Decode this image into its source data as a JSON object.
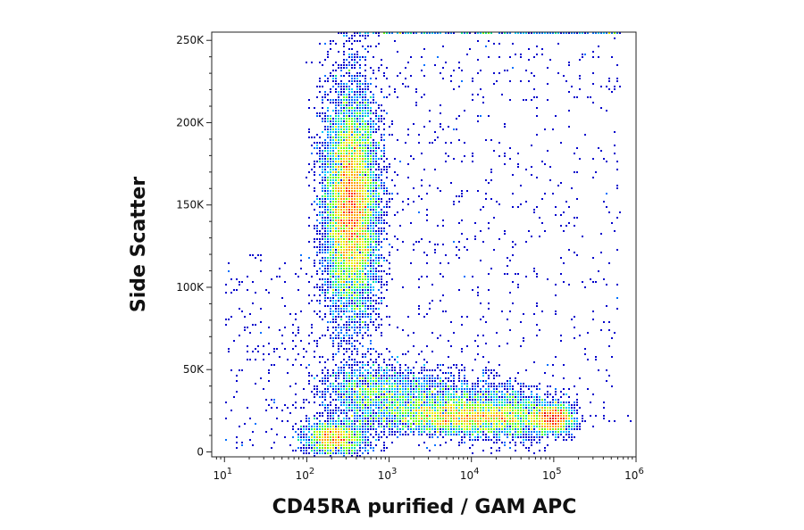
{
  "chart_data": {
    "type": "scatter",
    "subtype": "flow-cytometry density dot plot",
    "xlabel": "CD45RA purified / GAM APC",
    "ylabel": "Side Scatter",
    "x_scale": "log",
    "xlim": [
      7,
      1000000
    ],
    "x_ticks": [
      {
        "value": 10,
        "base": "10",
        "exp": "1"
      },
      {
        "value": 100,
        "base": "10",
        "exp": "2"
      },
      {
        "value": 1000,
        "base": "10",
        "exp": "3"
      },
      {
        "value": 10000,
        "base": "10",
        "exp": "4"
      },
      {
        "value": 100000,
        "base": "10",
        "exp": "5"
      },
      {
        "value": 1000000,
        "base": "10",
        "exp": "6"
      }
    ],
    "ylim": [
      -3000,
      255000
    ],
    "y_ticks": [
      {
        "value": 0,
        "label": "0"
      },
      {
        "value": 50000,
        "label": "50K"
      },
      {
        "value": 100000,
        "label": "100K"
      },
      {
        "value": 150000,
        "label": "150K"
      },
      {
        "value": 200000,
        "label": "200K"
      },
      {
        "value": 250000,
        "label": "250K"
      }
    ],
    "color_scale": [
      "#0000cc",
      "#0070ff",
      "#00c8ff",
      "#00e890",
      "#66ff00",
      "#e8f000",
      "#ffa000",
      "#ff3000",
      "#e00000"
    ],
    "populations": [
      {
        "x_center": 350,
        "y_center": 150000,
        "count": 9000
      },
      {
        "x_center": 220,
        "y_center": 8000,
        "count": 1500
      },
      {
        "x_center": 3000,
        "y_center": 38000,
        "count": 4000
      },
      {
        "x_center": 100000,
        "y_center": 20000,
        "count": 1300
      },
      {
        "x_center": 8000,
        "y_center": 20000,
        "count": 2400
      }
    ]
  }
}
